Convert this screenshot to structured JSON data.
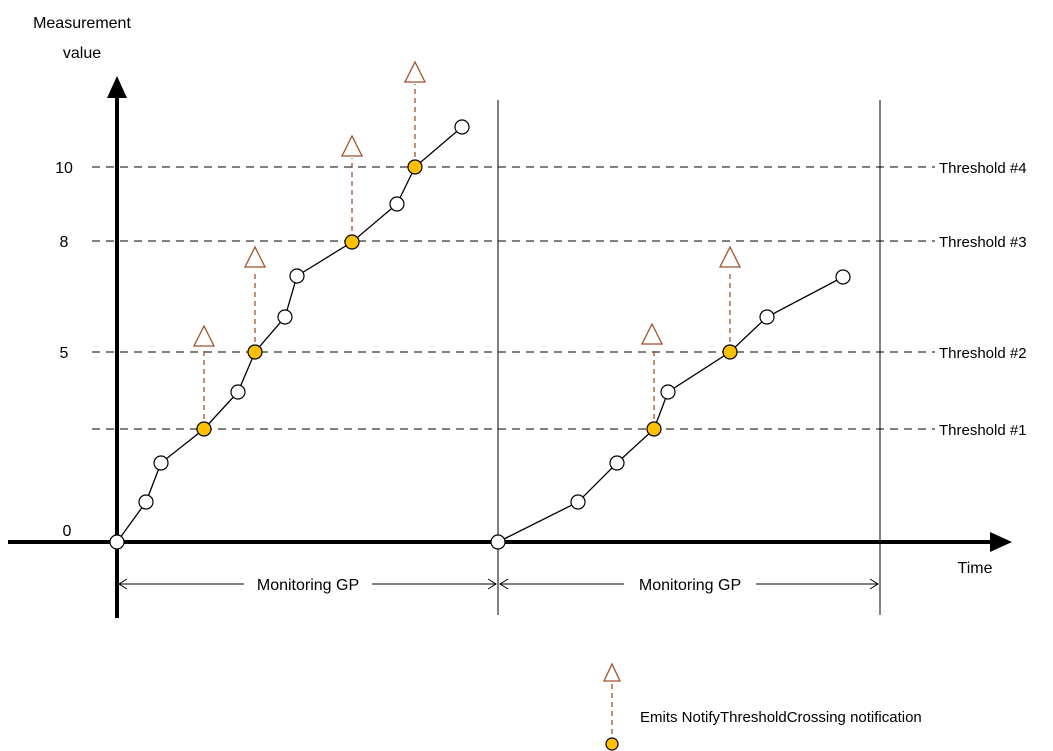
{
  "y_axis_label_line1": "Measurement",
  "y_axis_label_line2": "value",
  "x_axis_label": "Time",
  "y_ticks": [
    {
      "label": "0",
      "value": 0
    },
    {
      "label": "5",
      "value": 5
    },
    {
      "label": "8",
      "value": 8
    },
    {
      "label": "10",
      "value": 10
    }
  ],
  "thresholds": [
    {
      "label": "Threshold #1",
      "value": 3
    },
    {
      "label": "Threshold #2",
      "value": 5
    },
    {
      "label": "Threshold #3",
      "value": 8
    },
    {
      "label": "Threshold #4",
      "value": 10
    }
  ],
  "granularity_periods": [
    {
      "label": "Monitoring GP"
    },
    {
      "label": "Monitoring GP"
    }
  ],
  "legend": {
    "text": "Emits NotifyThresholdCrossing notification"
  },
  "colors": {
    "crossing_point": "#FFC000",
    "notification_arrow": "#A0522D",
    "line": "#000000"
  }
}
